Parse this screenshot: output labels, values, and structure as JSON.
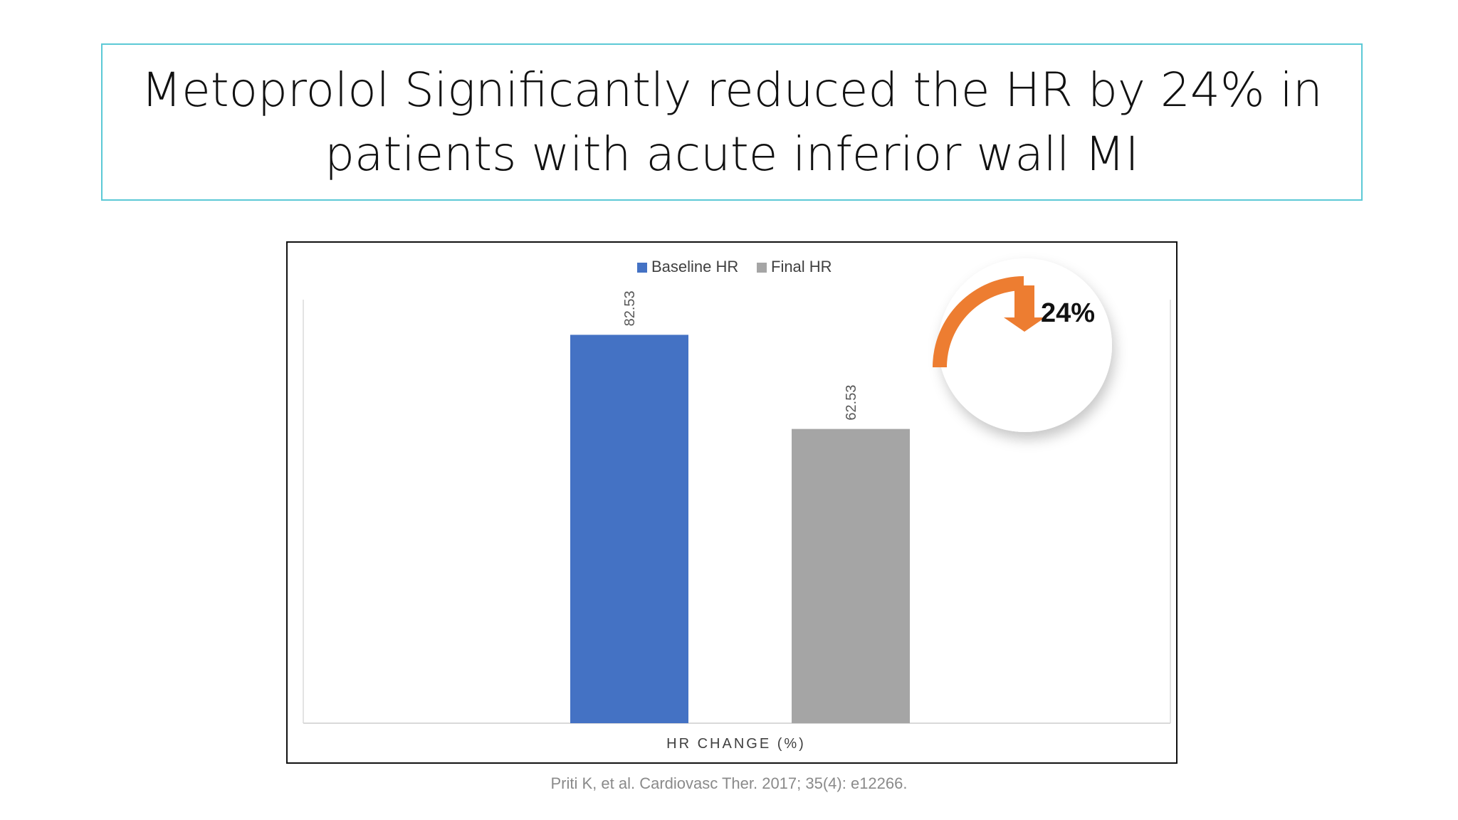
{
  "title": {
    "line1": "Metoprolol Significantly reduced the HR by 24% in",
    "line2": "patients with acute inferior wall MI"
  },
  "citation": "Priti K, et al. Cardiovasc Ther. 2017; 35(4): e12266.",
  "callout": {
    "value": "24%",
    "icon": "down-arrow-icon",
    "color": "#ed7d31"
  },
  "chart_data": {
    "type": "bar",
    "categories": [
      "HR CHANGE (%)"
    ],
    "series": [
      {
        "name": "Baseline HR",
        "values": [
          82.53
        ],
        "color": "#4472c4",
        "label": "82.53"
      },
      {
        "name": "Final HR",
        "values": [
          62.53
        ],
        "color": "#a5a5a5",
        "label": "62.53"
      }
    ],
    "title": "",
    "xlabel": "HR CHANGE (%)",
    "ylabel": "",
    "ylim": [
      0,
      90
    ],
    "grid": false,
    "legend": "top-center"
  }
}
